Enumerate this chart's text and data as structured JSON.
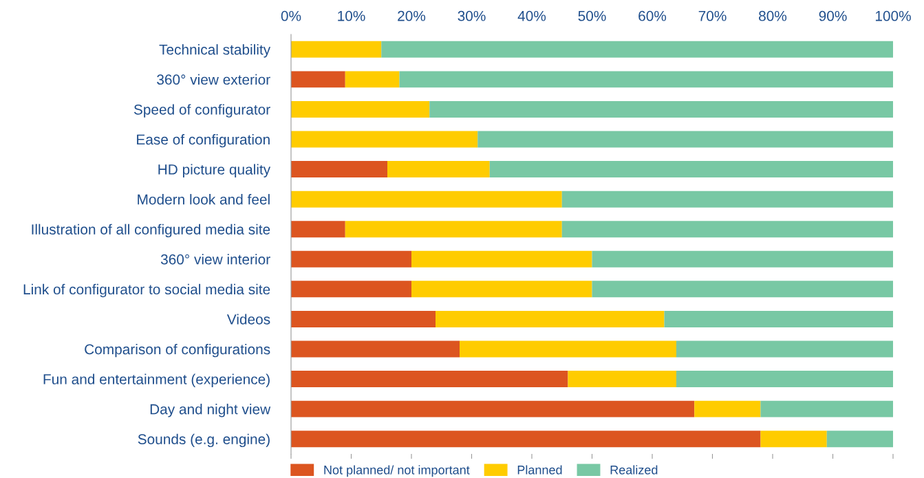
{
  "chart_data": {
    "type": "bar",
    "orientation": "horizontal",
    "stacked": true,
    "categories": [
      "Technical stability",
      "360° view exterior",
      "Speed of configurator",
      "Ease of configuration",
      "HD picture quality",
      "Modern look and feel",
      "Illustration of all configured media site",
      "360° view interior",
      "Link of configurator to social media site",
      "Videos",
      "Comparison of configurations",
      "Fun and entertainment (experience)",
      "Day and night view",
      "Sounds (e.g. engine)"
    ],
    "series": [
      {
        "name": "Not planned/ not important",
        "color": "#dc5520",
        "values": [
          0,
          9,
          0,
          0,
          16,
          0,
          9,
          20,
          20,
          24,
          28,
          46,
          67,
          78
        ]
      },
      {
        "name": "Planned",
        "color": "#ffcc00",
        "values": [
          15,
          9,
          23,
          31,
          17,
          45,
          36,
          30,
          30,
          38,
          36,
          18,
          11,
          11
        ]
      },
      {
        "name": "Realized",
        "color": "#78c8a4",
        "values": [
          85,
          82,
          77,
          69,
          67,
          55,
          55,
          50,
          50,
          38,
          36,
          36,
          22,
          11
        ]
      }
    ],
    "xlim": [
      0,
      100
    ],
    "xticks": [
      {
        "value": 0,
        "label": "0%"
      },
      {
        "value": 10,
        "label": "10%"
      },
      {
        "value": 20,
        "label": "20%"
      },
      {
        "value": 30,
        "label": "30%"
      },
      {
        "value": 40,
        "label": "40%"
      },
      {
        "value": 50,
        "label": "50%"
      },
      {
        "value": 60,
        "label": "60%"
      },
      {
        "value": 70,
        "label": "70%"
      },
      {
        "value": 80,
        "label": "80%"
      },
      {
        "value": 90,
        "label": "90%"
      },
      {
        "value": 100,
        "label": "100%"
      }
    ],
    "legend": "bottom",
    "grid": false
  }
}
